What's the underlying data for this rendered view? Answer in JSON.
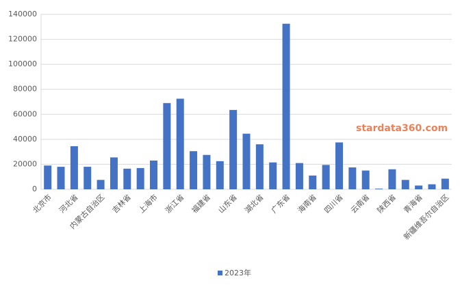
{
  "chart_data": {
    "type": "bar",
    "categories": [
      "北京市",
      null,
      "河北省",
      null,
      "内蒙古自治区",
      null,
      "吉林省",
      null,
      "上海市",
      null,
      "浙江省",
      null,
      "福建省",
      null,
      "山东省",
      null,
      "湖北省",
      null,
      "广东省",
      null,
      "海南省",
      null,
      "四川省",
      null,
      "云南省",
      null,
      "陕西省",
      null,
      "青海省",
      null,
      "新疆维吾尔自治区"
    ],
    "series": [
      {
        "name": "2023年",
        "color": "#4472c4",
        "values": [
          19000,
          18000,
          34500,
          18000,
          7500,
          25500,
          16500,
          17000,
          23000,
          69000,
          72500,
          30500,
          27500,
          22500,
          63500,
          44500,
          36000,
          21500,
          132500,
          21000,
          11000,
          19500,
          37500,
          17500,
          15000,
          500,
          16000,
          7500,
          3000,
          4000,
          8500
        ]
      }
    ],
    "ylim": [
      0,
      140000
    ],
    "yticks": [
      0,
      20000,
      40000,
      60000,
      80000,
      100000,
      120000,
      140000
    ],
    "grid": true,
    "legend": "bottom",
    "annotation": "stardata360.com"
  }
}
